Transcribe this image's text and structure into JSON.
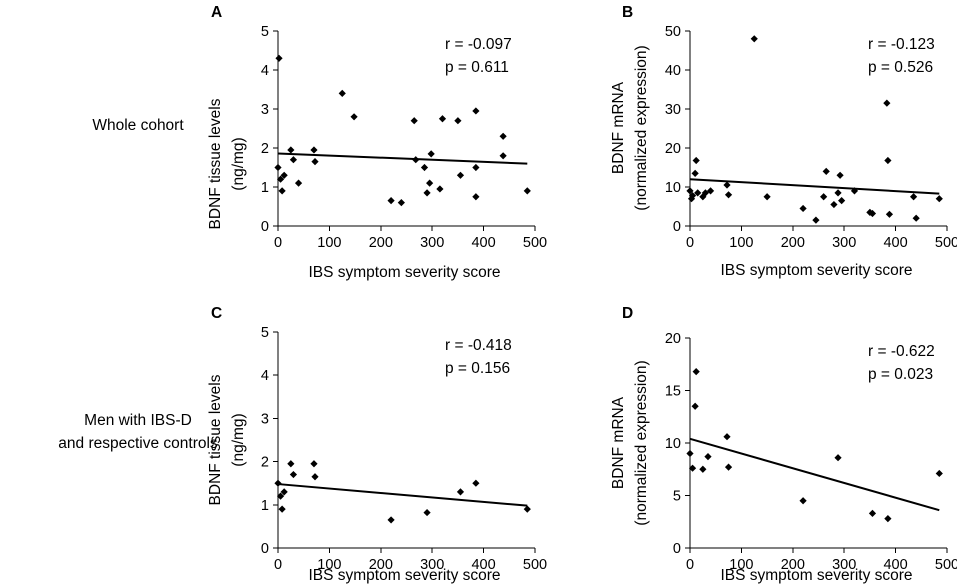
{
  "row_labels": [
    [
      "Whole cohort"
    ],
    [
      "Men with IBS-D",
      "and respective controls"
    ]
  ],
  "chart_data": [
    {
      "type": "scatter",
      "panel": "A",
      "xlabel": "IBS symptom severity score",
      "ylabel": [
        "BDNF tissue levels",
        "(ng/mg)"
      ],
      "xlim": [
        0,
        500
      ],
      "ylim": [
        0,
        5
      ],
      "xticks": [
        0,
        100,
        200,
        300,
        400,
        500
      ],
      "yticks": [
        0,
        1,
        2,
        3,
        4,
        5
      ],
      "stats": [
        "r = -0.097",
        "p = 0.611"
      ],
      "trendline": [
        [
          0,
          1.86
        ],
        [
          485,
          1.6
        ]
      ],
      "points": [
        [
          0,
          1.5
        ],
        [
          2,
          4.3
        ],
        [
          5,
          1.2
        ],
        [
          8,
          0.9
        ],
        [
          12,
          1.3
        ],
        [
          25,
          1.95
        ],
        [
          30,
          1.7
        ],
        [
          40,
          1.1
        ],
        [
          70,
          1.95
        ],
        [
          72,
          1.65
        ],
        [
          125,
          3.4
        ],
        [
          148,
          2.8
        ],
        [
          220,
          0.65
        ],
        [
          240,
          0.6
        ],
        [
          265,
          2.7
        ],
        [
          268,
          1.7
        ],
        [
          285,
          1.5
        ],
        [
          290,
          0.85
        ],
        [
          295,
          1.1
        ],
        [
          298,
          1.85
        ],
        [
          315,
          0.95
        ],
        [
          320,
          2.75
        ],
        [
          350,
          2.7
        ],
        [
          355,
          1.3
        ],
        [
          385,
          2.95
        ],
        [
          385,
          1.5
        ],
        [
          385,
          0.75
        ],
        [
          438,
          2.3
        ],
        [
          438,
          1.8
        ],
        [
          485,
          0.9
        ]
      ]
    },
    {
      "type": "scatter",
      "panel": "B",
      "xlabel": "IBS symptom severity score",
      "ylabel": [
        "BDNF mRNA",
        "(normalized expression)"
      ],
      "xlim": [
        0,
        500
      ],
      "ylim": [
        0,
        50
      ],
      "xticks": [
        0,
        100,
        200,
        300,
        400,
        500
      ],
      "yticks": [
        0,
        10,
        20,
        30,
        40,
        50
      ],
      "stats": [
        "r = -0.123",
        "p = 0.526"
      ],
      "trendline": [
        [
          0,
          12
        ],
        [
          485,
          8.3
        ]
      ],
      "points": [
        [
          0,
          9
        ],
        [
          3,
          7
        ],
        [
          5,
          7.8
        ],
        [
          10,
          13.5
        ],
        [
          12,
          16.8
        ],
        [
          15,
          8.5
        ],
        [
          25,
          7.5
        ],
        [
          30,
          8.5
        ],
        [
          40,
          9
        ],
        [
          72,
          10.5
        ],
        [
          75,
          8
        ],
        [
          125,
          48
        ],
        [
          150,
          7.5
        ],
        [
          220,
          4.5
        ],
        [
          245,
          1.5
        ],
        [
          260,
          7.5
        ],
        [
          265,
          14
        ],
        [
          280,
          5.5
        ],
        [
          288,
          8.5
        ],
        [
          292,
          13
        ],
        [
          295,
          6.5
        ],
        [
          320,
          9
        ],
        [
          350,
          3.5
        ],
        [
          355,
          3.2
        ],
        [
          383,
          31.5
        ],
        [
          385,
          16.8
        ],
        [
          388,
          3
        ],
        [
          435,
          7.5
        ],
        [
          440,
          2
        ],
        [
          485,
          7
        ]
      ]
    },
    {
      "type": "scatter",
      "panel": "C",
      "xlabel": "IBS symptom severity score",
      "ylabel": [
        "BDNF tissue levels",
        "(ng/mg)"
      ],
      "xlim": [
        0,
        500
      ],
      "ylim": [
        0,
        5
      ],
      "xticks": [
        0,
        100,
        200,
        300,
        400,
        500
      ],
      "yticks": [
        0,
        1,
        2,
        3,
        4,
        5
      ],
      "stats": [
        "r = -0.418",
        "p = 0.156"
      ],
      "trendline": [
        [
          0,
          1.48
        ],
        [
          485,
          0.98
        ]
      ],
      "points": [
        [
          0,
          1.5
        ],
        [
          5,
          1.2
        ],
        [
          8,
          0.9
        ],
        [
          12,
          1.3
        ],
        [
          25,
          1.95
        ],
        [
          30,
          1.7
        ],
        [
          70,
          1.95
        ],
        [
          72,
          1.65
        ],
        [
          220,
          0.65
        ],
        [
          290,
          0.82
        ],
        [
          355,
          1.3
        ],
        [
          385,
          1.5
        ],
        [
          485,
          0.9
        ]
      ]
    },
    {
      "type": "scatter",
      "panel": "D",
      "xlabel": "IBS symptom severity score",
      "ylabel": [
        "BDNF mRNA",
        "(normalized expression)"
      ],
      "xlim": [
        0,
        500
      ],
      "ylim": [
        0,
        20
      ],
      "xticks": [
        0,
        100,
        200,
        300,
        400,
        500
      ],
      "yticks": [
        0,
        5,
        10,
        15,
        20
      ],
      "stats": [
        "r = -0.622",
        "p = 0.023"
      ],
      "trendline": [
        [
          0,
          10.4
        ],
        [
          485,
          3.6
        ]
      ],
      "points": [
        [
          0,
          9
        ],
        [
          5,
          7.6
        ],
        [
          10,
          13.5
        ],
        [
          12,
          16.8
        ],
        [
          25,
          7.5
        ],
        [
          35,
          8.7
        ],
        [
          72,
          10.6
        ],
        [
          75,
          7.7
        ],
        [
          220,
          4.5
        ],
        [
          288,
          8.6
        ],
        [
          355,
          3.3
        ],
        [
          385,
          2.8
        ],
        [
          485,
          7.1
        ]
      ]
    }
  ]
}
